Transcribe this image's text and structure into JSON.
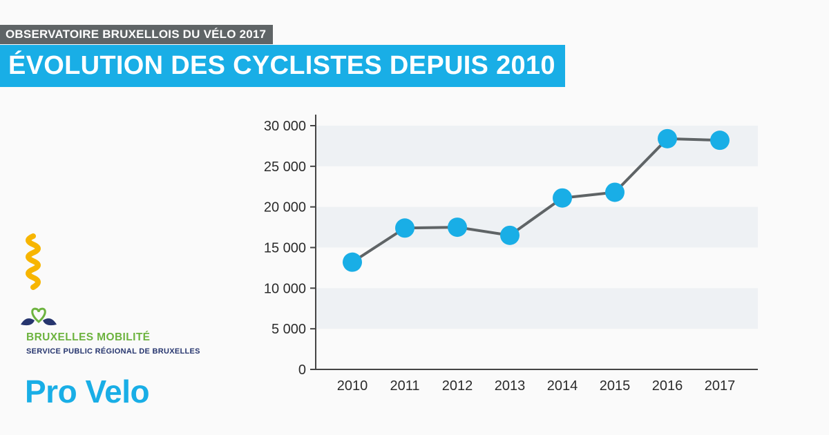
{
  "header": {
    "kicker": "OBSERVATOIRE BRUXELLOIS DU VÉLO 2017",
    "title": "ÉVOLUTION DES CYCLISTES DEPUIS 2010"
  },
  "brand": {
    "mobility_name": "BRUXELLES MOBILITÉ",
    "mobility_sub": "SERVICE PUBLIC RÉGIONAL DE BRUXELLES",
    "provelo": "Pro Velo"
  },
  "colors": {
    "accent": "#19aee6",
    "kicker_bg": "#5f6466",
    "line": "#5f6466",
    "band": "#eef1f4",
    "iris_yellow": "#f7b500",
    "mobility_green": "#6db33f",
    "mobility_navy": "#26356e"
  },
  "chart_data": {
    "type": "line",
    "title": "ÉVOLUTION DES CYCLISTES DEPUIS 2010",
    "xlabel": "",
    "ylabel": "",
    "categories": [
      "2010",
      "2011",
      "2012",
      "2013",
      "2014",
      "2015",
      "2016",
      "2017"
    ],
    "values": [
      13200,
      17400,
      17500,
      16500,
      21100,
      21800,
      28400,
      28200
    ],
    "ylim": [
      0,
      30000
    ],
    "yticks": [
      0,
      5000,
      10000,
      15000,
      20000,
      25000,
      30000
    ],
    "ytick_labels": [
      "0",
      "5 000",
      "10 000",
      "15 000",
      "20 000",
      "25 000",
      "30 000"
    ],
    "grid": "alternating horizontal bands",
    "legend": "none"
  }
}
